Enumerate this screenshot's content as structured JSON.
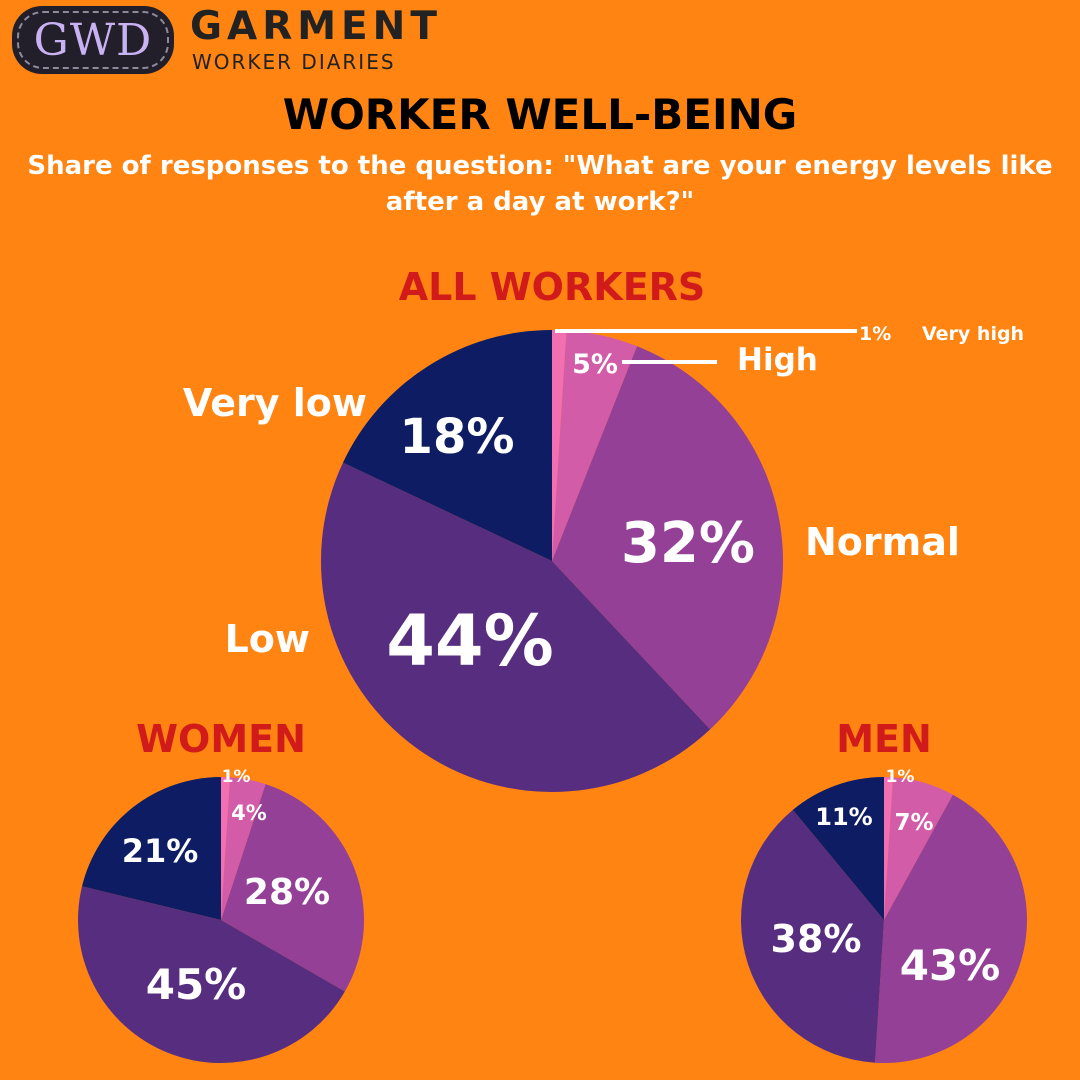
{
  "logo": {
    "badge": "GWD",
    "line1": "GARMENT",
    "line2": "WORKER DIARIES"
  },
  "title": "WORKER WELL-BEING",
  "subtitle": "Share of responses to the question: \"What are your energy levels like after a day at work?\"",
  "colors": {
    "background": "#FF8412",
    "very_high": "#F26FB2",
    "high": "#D25CA8",
    "normal": "#934096",
    "low": "#572D80",
    "very_low": "#0E1C63",
    "section_title": "#D11B1B"
  },
  "chart_data": [
    {
      "type": "pie",
      "title": "ALL WORKERS",
      "categories": [
        "Very high",
        "High",
        "Normal",
        "Low",
        "Very low"
      ],
      "values": [
        1,
        5,
        32,
        44,
        18
      ],
      "value_labels": [
        "1%",
        "5%",
        "32%",
        "44%",
        "18%"
      ]
    },
    {
      "type": "pie",
      "title": "WOMEN",
      "categories": [
        "Very high",
        "High",
        "Normal",
        "Low",
        "Very low"
      ],
      "values": [
        1,
        4,
        28,
        45,
        21
      ],
      "value_labels": [
        "1%",
        "4%",
        "28%",
        "45%",
        "21%"
      ]
    },
    {
      "type": "pie",
      "title": "MEN",
      "categories": [
        "Very high",
        "High",
        "Normal",
        "Low",
        "Very low"
      ],
      "values": [
        1,
        7,
        43,
        38,
        11
      ],
      "value_labels": [
        "1%",
        "7%",
        "43%",
        "38%",
        "11%"
      ]
    }
  ]
}
